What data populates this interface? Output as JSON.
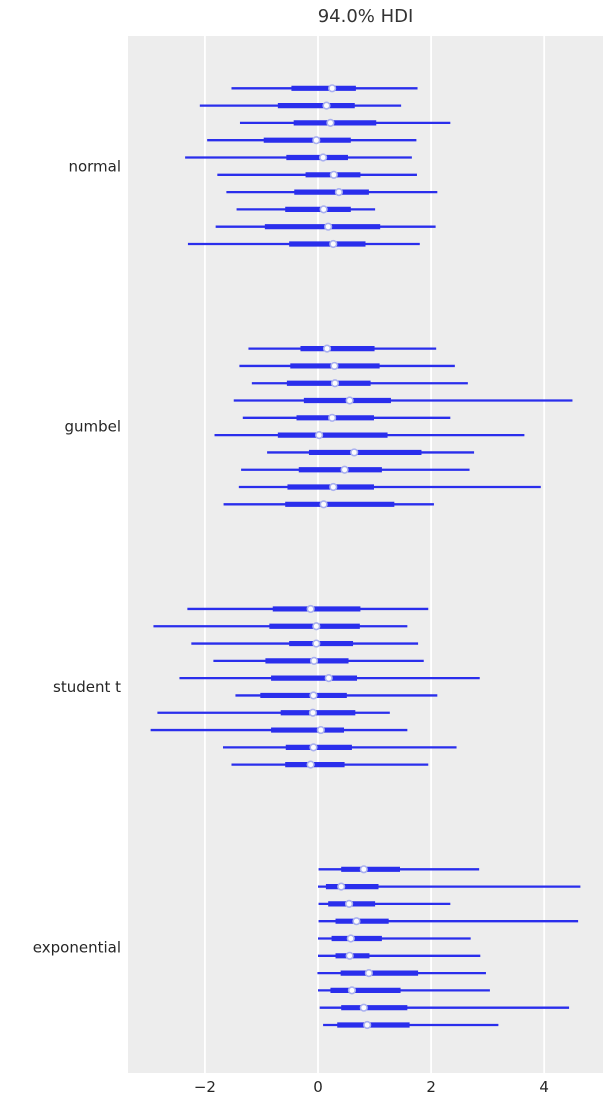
{
  "colors": {
    "accent": "#2a2eec",
    "plot_bg": "#ededed",
    "grid": "#ffffff",
    "text": "#262626",
    "title_text": "#333333",
    "marker_face": "#fcfcfc",
    "marker_edge": "#a9b0ef",
    "canvas_bg": "#ffffff"
  },
  "chart_data": {
    "type": "forest",
    "title": "94.0% HDI",
    "xlabel": "",
    "ylabel": "",
    "xlim": [
      -3.36,
      5.04
    ],
    "grid": "vertical-only",
    "legend": "none",
    "x_ticks": {
      "values": [
        -2,
        0,
        2,
        4
      ],
      "labels": [
        "−2",
        "0",
        "2",
        "4"
      ]
    },
    "groups": [
      {
        "label": "normal",
        "rows": [
          {
            "hdi": [
              -1.53,
              1.76
            ],
            "quartile": [
              -0.47,
              0.67
            ],
            "median": 0.25
          },
          {
            "hdi": [
              -2.09,
              1.47
            ],
            "quartile": [
              -0.71,
              0.65
            ],
            "median": 0.15
          },
          {
            "hdi": [
              -1.38,
              2.34
            ],
            "quartile": [
              -0.43,
              1.03
            ],
            "median": 0.22
          },
          {
            "hdi": [
              -1.96,
              1.74
            ],
            "quartile": [
              -0.96,
              0.58
            ],
            "median": -0.03
          },
          {
            "hdi": [
              -2.35,
              1.66
            ],
            "quartile": [
              -0.56,
              0.53
            ],
            "median": 0.09
          },
          {
            "hdi": [
              -1.78,
              1.75
            ],
            "quartile": [
              -0.22,
              0.75
            ],
            "median": 0.28
          },
          {
            "hdi": [
              -1.62,
              2.11
            ],
            "quartile": [
              -0.42,
              0.9
            ],
            "median": 0.37
          },
          {
            "hdi": [
              -1.44,
              1.01
            ],
            "quartile": [
              -0.58,
              0.58
            ],
            "median": 0.1
          },
          {
            "hdi": [
              -1.81,
              2.08
            ],
            "quartile": [
              -0.94,
              1.1
            ],
            "median": 0.18
          },
          {
            "hdi": [
              -2.3,
              1.8
            ],
            "quartile": [
              -0.51,
              0.84
            ],
            "median": 0.27
          }
        ]
      },
      {
        "label": "gumbel",
        "rows": [
          {
            "hdi": [
              -1.23,
              2.09
            ],
            "quartile": [
              -0.31,
              1.0
            ],
            "median": 0.16
          },
          {
            "hdi": [
              -1.39,
              2.42
            ],
            "quartile": [
              -0.49,
              1.09
            ],
            "median": 0.29
          },
          {
            "hdi": [
              -1.17,
              2.65
            ],
            "quartile": [
              -0.55,
              0.93
            ],
            "median": 0.3
          },
          {
            "hdi": [
              -1.49,
              4.5
            ],
            "quartile": [
              -0.25,
              1.29
            ],
            "median": 0.56
          },
          {
            "hdi": [
              -1.33,
              2.34
            ],
            "quartile": [
              -0.38,
              0.99
            ],
            "median": 0.25
          },
          {
            "hdi": [
              -1.83,
              3.65
            ],
            "quartile": [
              -0.71,
              1.23
            ],
            "median": 0.02
          },
          {
            "hdi": [
              -0.9,
              2.76
            ],
            "quartile": [
              -0.16,
              1.83
            ],
            "median": 0.64
          },
          {
            "hdi": [
              -1.36,
              2.68
            ],
            "quartile": [
              -0.34,
              1.13
            ],
            "median": 0.47
          },
          {
            "hdi": [
              -1.4,
              3.94
            ],
            "quartile": [
              -0.54,
              0.99
            ],
            "median": 0.27
          },
          {
            "hdi": [
              -1.67,
              2.05
            ],
            "quartile": [
              -0.58,
              1.35
            ],
            "median": 0.1
          }
        ]
      },
      {
        "label": "student t",
        "rows": [
          {
            "hdi": [
              -2.31,
              1.95
            ],
            "quartile": [
              -0.8,
              0.75
            ],
            "median": -0.13
          },
          {
            "hdi": [
              -2.91,
              1.58
            ],
            "quartile": [
              -0.86,
              0.74
            ],
            "median": -0.03
          },
          {
            "hdi": [
              -2.24,
              1.77
            ],
            "quartile": [
              -0.51,
              0.62
            ],
            "median": -0.03
          },
          {
            "hdi": [
              -1.85,
              1.87
            ],
            "quartile": [
              -0.93,
              0.54
            ],
            "median": -0.07
          },
          {
            "hdi": [
              -2.45,
              2.86
            ],
            "quartile": [
              -0.83,
              0.69
            ],
            "median": 0.19
          },
          {
            "hdi": [
              -1.46,
              2.11
            ],
            "quartile": [
              -1.02,
              0.51
            ],
            "median": -0.08
          },
          {
            "hdi": [
              -2.84,
              1.27
            ],
            "quartile": [
              -0.66,
              0.66
            ],
            "median": -0.09
          },
          {
            "hdi": [
              -2.96,
              1.58
            ],
            "quartile": [
              -0.83,
              0.46
            ],
            "median": 0.05
          },
          {
            "hdi": [
              -1.68,
              2.45
            ],
            "quartile": [
              -0.57,
              0.6
            ],
            "median": -0.08
          },
          {
            "hdi": [
              -1.53,
              1.95
            ],
            "quartile": [
              -0.58,
              0.47
            ],
            "median": -0.13
          }
        ]
      },
      {
        "label": "exponential",
        "rows": [
          {
            "hdi": [
              0.01,
              2.85
            ],
            "quartile": [
              0.41,
              1.45
            ],
            "median": 0.81
          },
          {
            "hdi": [
              0.0,
              4.64
            ],
            "quartile": [
              0.14,
              1.07
            ],
            "median": 0.41
          },
          {
            "hdi": [
              0.01,
              2.34
            ],
            "quartile": [
              0.18,
              1.01
            ],
            "median": 0.55
          },
          {
            "hdi": [
              0.01,
              4.6
            ],
            "quartile": [
              0.31,
              1.25
            ],
            "median": 0.68
          },
          {
            "hdi": [
              0.0,
              2.7
            ],
            "quartile": [
              0.24,
              1.13
            ],
            "median": 0.58
          },
          {
            "hdi": [
              0.0,
              2.87
            ],
            "quartile": [
              0.31,
              0.91
            ],
            "median": 0.56
          },
          {
            "hdi": [
              -0.01,
              2.97
            ],
            "quartile": [
              0.4,
              1.77
            ],
            "median": 0.9
          },
          {
            "hdi": [
              0.0,
              3.04
            ],
            "quartile": [
              0.22,
              1.46
            ],
            "median": 0.6
          },
          {
            "hdi": [
              0.03,
              4.44
            ],
            "quartile": [
              0.41,
              1.58
            ],
            "median": 0.81
          },
          {
            "hdi": [
              0.09,
              3.19
            ],
            "quartile": [
              0.34,
              1.62
            ],
            "median": 0.87
          }
        ]
      }
    ]
  }
}
